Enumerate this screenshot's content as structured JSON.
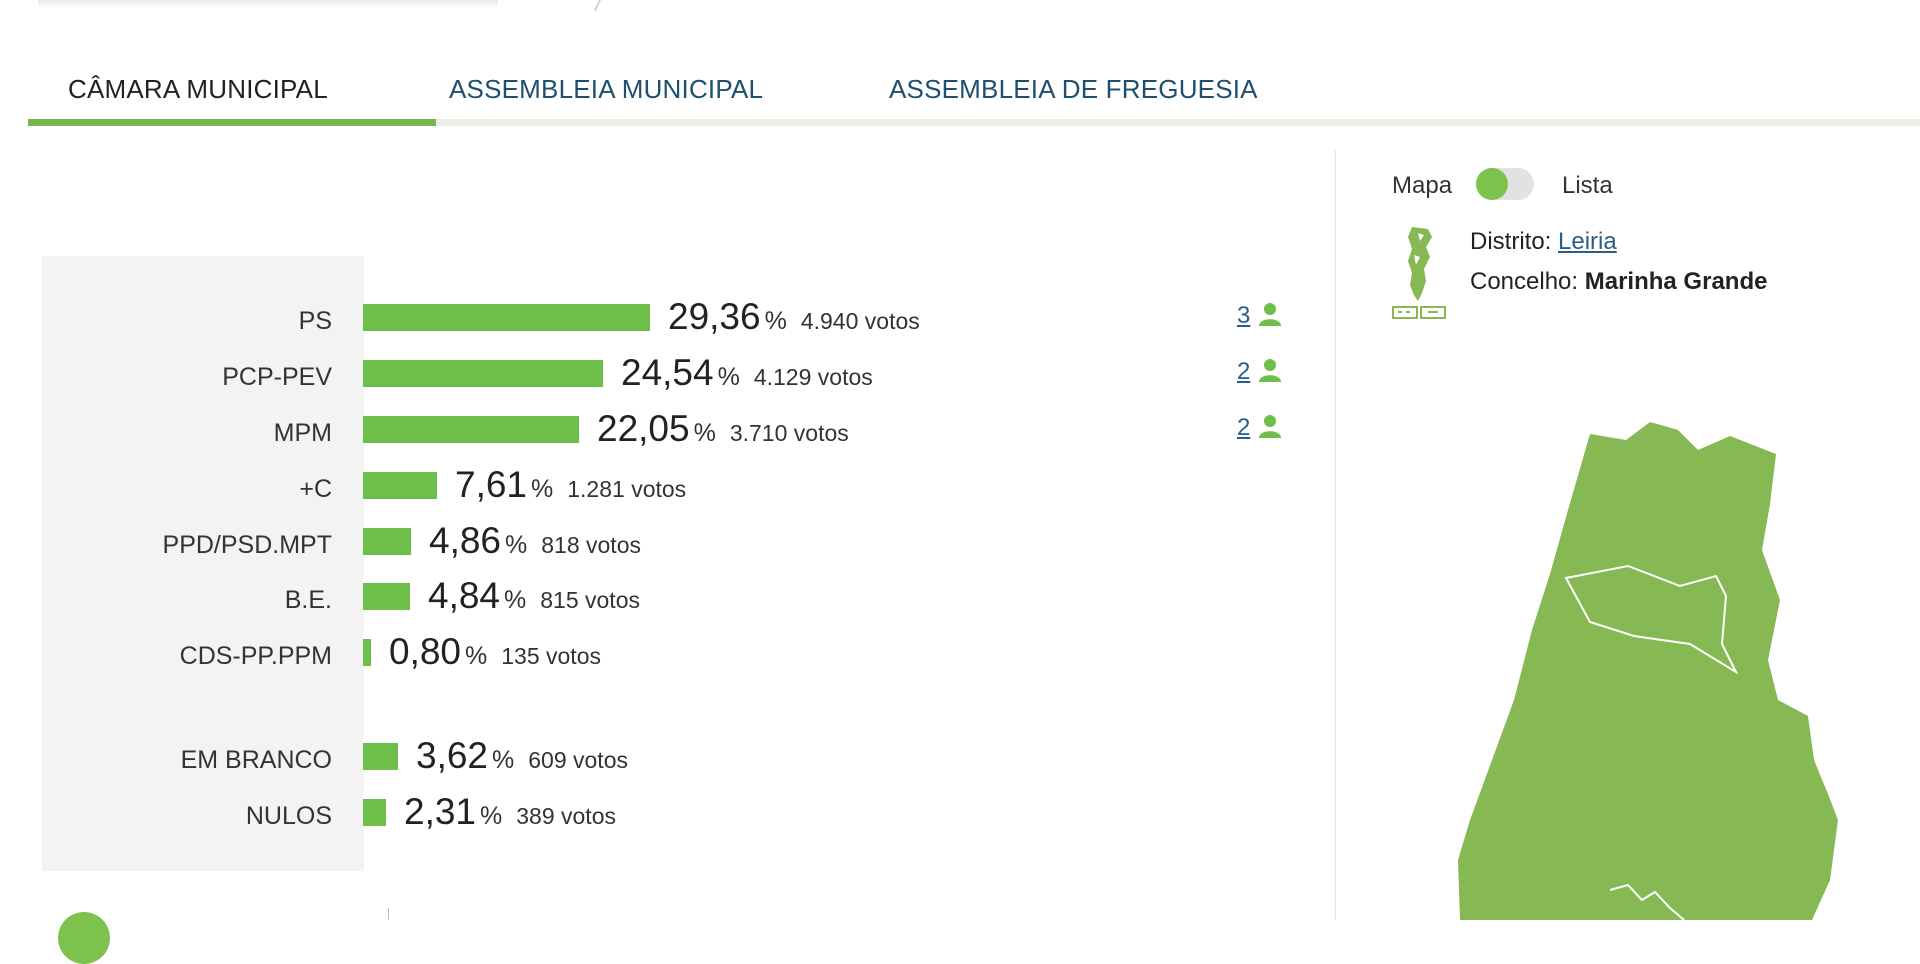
{
  "tabs": [
    {
      "label": "CÂMARA MUNICIPAL",
      "active": true
    },
    {
      "label": "ASSEMBLEIA MUNICIPAL",
      "active": false
    },
    {
      "label": "ASSEMBLEIA DE FREGUESIA",
      "active": false
    }
  ],
  "results": [
    {
      "party": "PS",
      "pct": "29,36",
      "votes": "4.940 votos",
      "seats": "3",
      "share": 29.36
    },
    {
      "party": "PCP-PEV",
      "pct": "24,54",
      "votes": "4.129 votos",
      "seats": "2",
      "share": 24.54
    },
    {
      "party": "MPM",
      "pct": "22,05",
      "votes": "3.710 votos",
      "seats": "2",
      "share": 22.05
    },
    {
      "party": "+C",
      "pct": "7,61",
      "votes": "1.281 votos",
      "seats": "",
      "share": 7.61
    },
    {
      "party": "PPD/PSD.MPT",
      "pct": "4,86",
      "votes": "818 votos",
      "seats": "",
      "share": 4.86
    },
    {
      "party": "B.E.",
      "pct": "4,84",
      "votes": "815 votos",
      "seats": "",
      "share": 4.84
    },
    {
      "party": "CDS-PP.PPM",
      "pct": "0,80",
      "votes": "135 votos",
      "seats": "",
      "share": 0.8
    }
  ],
  "other_results": [
    {
      "party": "EM BRANCO",
      "pct": "3,62",
      "votes": "609 votos",
      "share": 3.62
    },
    {
      "party": "NULOS",
      "pct": "2,31",
      "votes": "389 votos",
      "share": 2.31
    }
  ],
  "pct_symbol": "%",
  "view_toggle": {
    "left_label": "Mapa",
    "right_label": "Lista",
    "selected": "Mapa"
  },
  "location": {
    "district_label": "Distrito:",
    "district": "Leiria",
    "municipality_label": "Concelho:",
    "municipality": "Marinha Grande"
  },
  "colors": {
    "accent": "#6ebf49",
    "map_fill": "#86b853",
    "link": "#2a5e87"
  }
}
